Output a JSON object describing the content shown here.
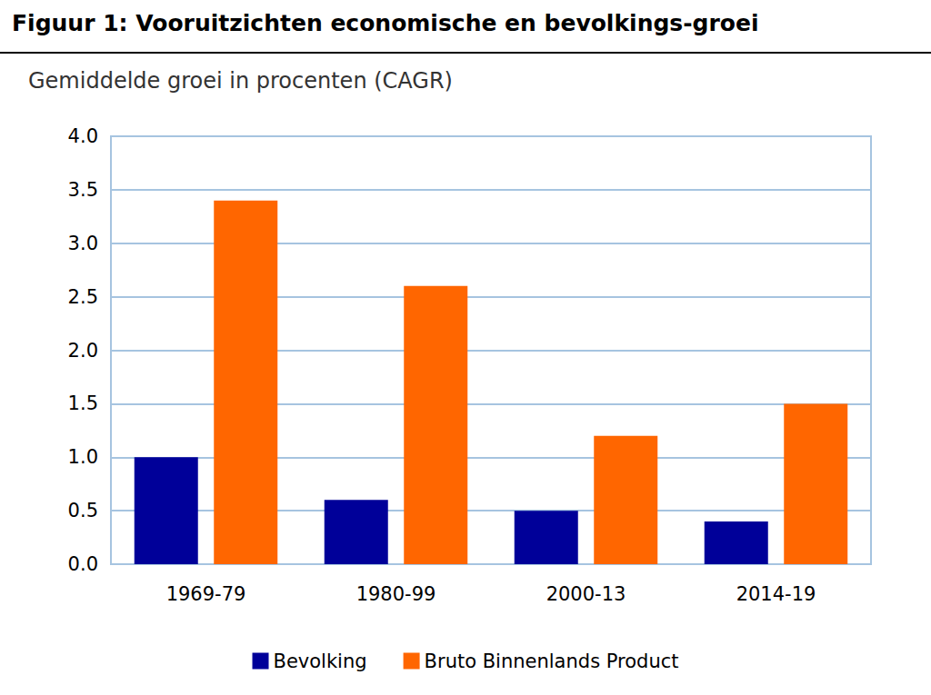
{
  "chart_data": {
    "type": "bar",
    "title": "Figuur 1: Vooruitzichten economische en bevolkings-groei",
    "subtitle": "Gemiddelde groei in procenten (CAGR)",
    "categories": [
      "1969-79",
      "1980-99",
      "2000-13",
      "2014-19"
    ],
    "series": [
      {
        "name": "Bevolking",
        "color": "#000099",
        "values": [
          1.0,
          0.6,
          0.5,
          0.4
        ]
      },
      {
        "name": "Bruto Binnenlands Product",
        "color": "#FF6600",
        "values": [
          3.4,
          2.6,
          1.2,
          1.5
        ]
      }
    ],
    "ylim": [
      0,
      4
    ],
    "yticks": [
      {
        "value": 0,
        "label": "0.0"
      },
      0.5,
      {
        "value": 1,
        "label": "1.0"
      },
      1.5,
      {
        "value": 2,
        "label": "2.0"
      },
      2.5,
      {
        "value": 3,
        "label": "3.0"
      },
      3.5,
      {
        "value": 4,
        "label": "4.0"
      }
    ],
    "grid": true,
    "legend": "bottom"
  }
}
